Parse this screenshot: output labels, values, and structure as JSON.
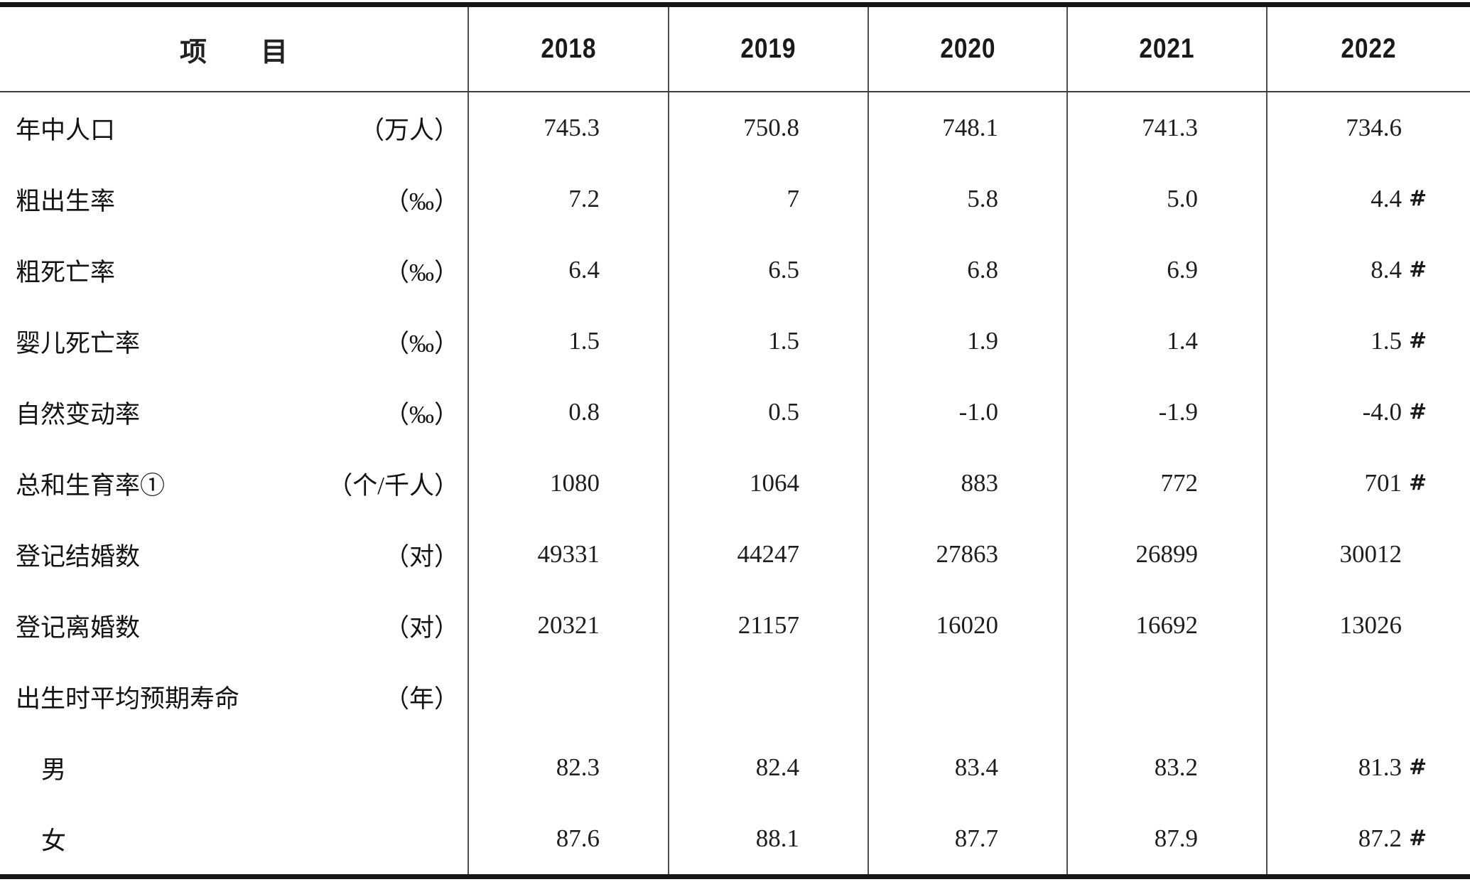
{
  "table": {
    "header": {
      "item_label": "项　　目",
      "years": [
        "2018",
        "2019",
        "2020",
        "2021",
        "2022"
      ]
    },
    "rows": [
      {
        "label": "年中人口",
        "unit": "（万人）",
        "indent": false,
        "values": [
          "745.3",
          "750.8",
          "748.1",
          "741.3",
          "734.6"
        ],
        "flags": [
          "",
          "",
          "",
          "",
          ""
        ]
      },
      {
        "label": "粗出生率",
        "unit": "（‰）",
        "indent": false,
        "values": [
          "7.2",
          "7",
          "5.8",
          "5.0",
          "4.4"
        ],
        "flags": [
          "",
          "",
          "",
          "",
          "#"
        ]
      },
      {
        "label": "粗死亡率",
        "unit": "（‰）",
        "indent": false,
        "values": [
          "6.4",
          "6.5",
          "6.8",
          "6.9",
          "8.4"
        ],
        "flags": [
          "",
          "",
          "",
          "",
          "#"
        ]
      },
      {
        "label": "婴儿死亡率",
        "unit": "（‰）",
        "indent": false,
        "values": [
          "1.5",
          "1.5",
          "1.9",
          "1.4",
          "1.5"
        ],
        "flags": [
          "",
          "",
          "",
          "",
          "#"
        ]
      },
      {
        "label": "自然变动率",
        "unit": "（‰）",
        "indent": false,
        "values": [
          "0.8",
          "0.5",
          "-1.0",
          "-1.9",
          "-4.0"
        ],
        "flags": [
          "",
          "",
          "",
          "",
          "#"
        ]
      },
      {
        "label": "总和生育率①",
        "unit": "（个/千人）",
        "indent": false,
        "values": [
          "1080",
          "1064",
          "883",
          "772",
          "701"
        ],
        "flags": [
          "",
          "",
          "",
          "",
          "#"
        ]
      },
      {
        "label": "登记结婚数",
        "unit": "（对）",
        "indent": false,
        "values": [
          "49331",
          "44247",
          "27863",
          "26899",
          "30012"
        ],
        "flags": [
          "",
          "",
          "",
          "",
          ""
        ]
      },
      {
        "label": "登记离婚数",
        "unit": "（对）",
        "indent": false,
        "values": [
          "20321",
          "21157",
          "16020",
          "16692",
          "13026"
        ],
        "flags": [
          "",
          "",
          "",
          "",
          ""
        ]
      },
      {
        "label": "出生时平均预期寿命",
        "unit": "（年）",
        "indent": false,
        "values": [
          "",
          "",
          "",
          "",
          ""
        ],
        "flags": [
          "",
          "",
          "",
          "",
          ""
        ]
      },
      {
        "label": "男",
        "unit": "",
        "indent": true,
        "values": [
          "82.3",
          "82.4",
          "83.4",
          "83.2",
          "81.3"
        ],
        "flags": [
          "",
          "",
          "",
          "",
          "#"
        ]
      },
      {
        "label": "女",
        "unit": "",
        "indent": true,
        "values": [
          "87.6",
          "88.1",
          "87.7",
          "87.9",
          "87.2"
        ],
        "flags": [
          "",
          "",
          "",
          "",
          "#"
        ]
      }
    ]
  }
}
